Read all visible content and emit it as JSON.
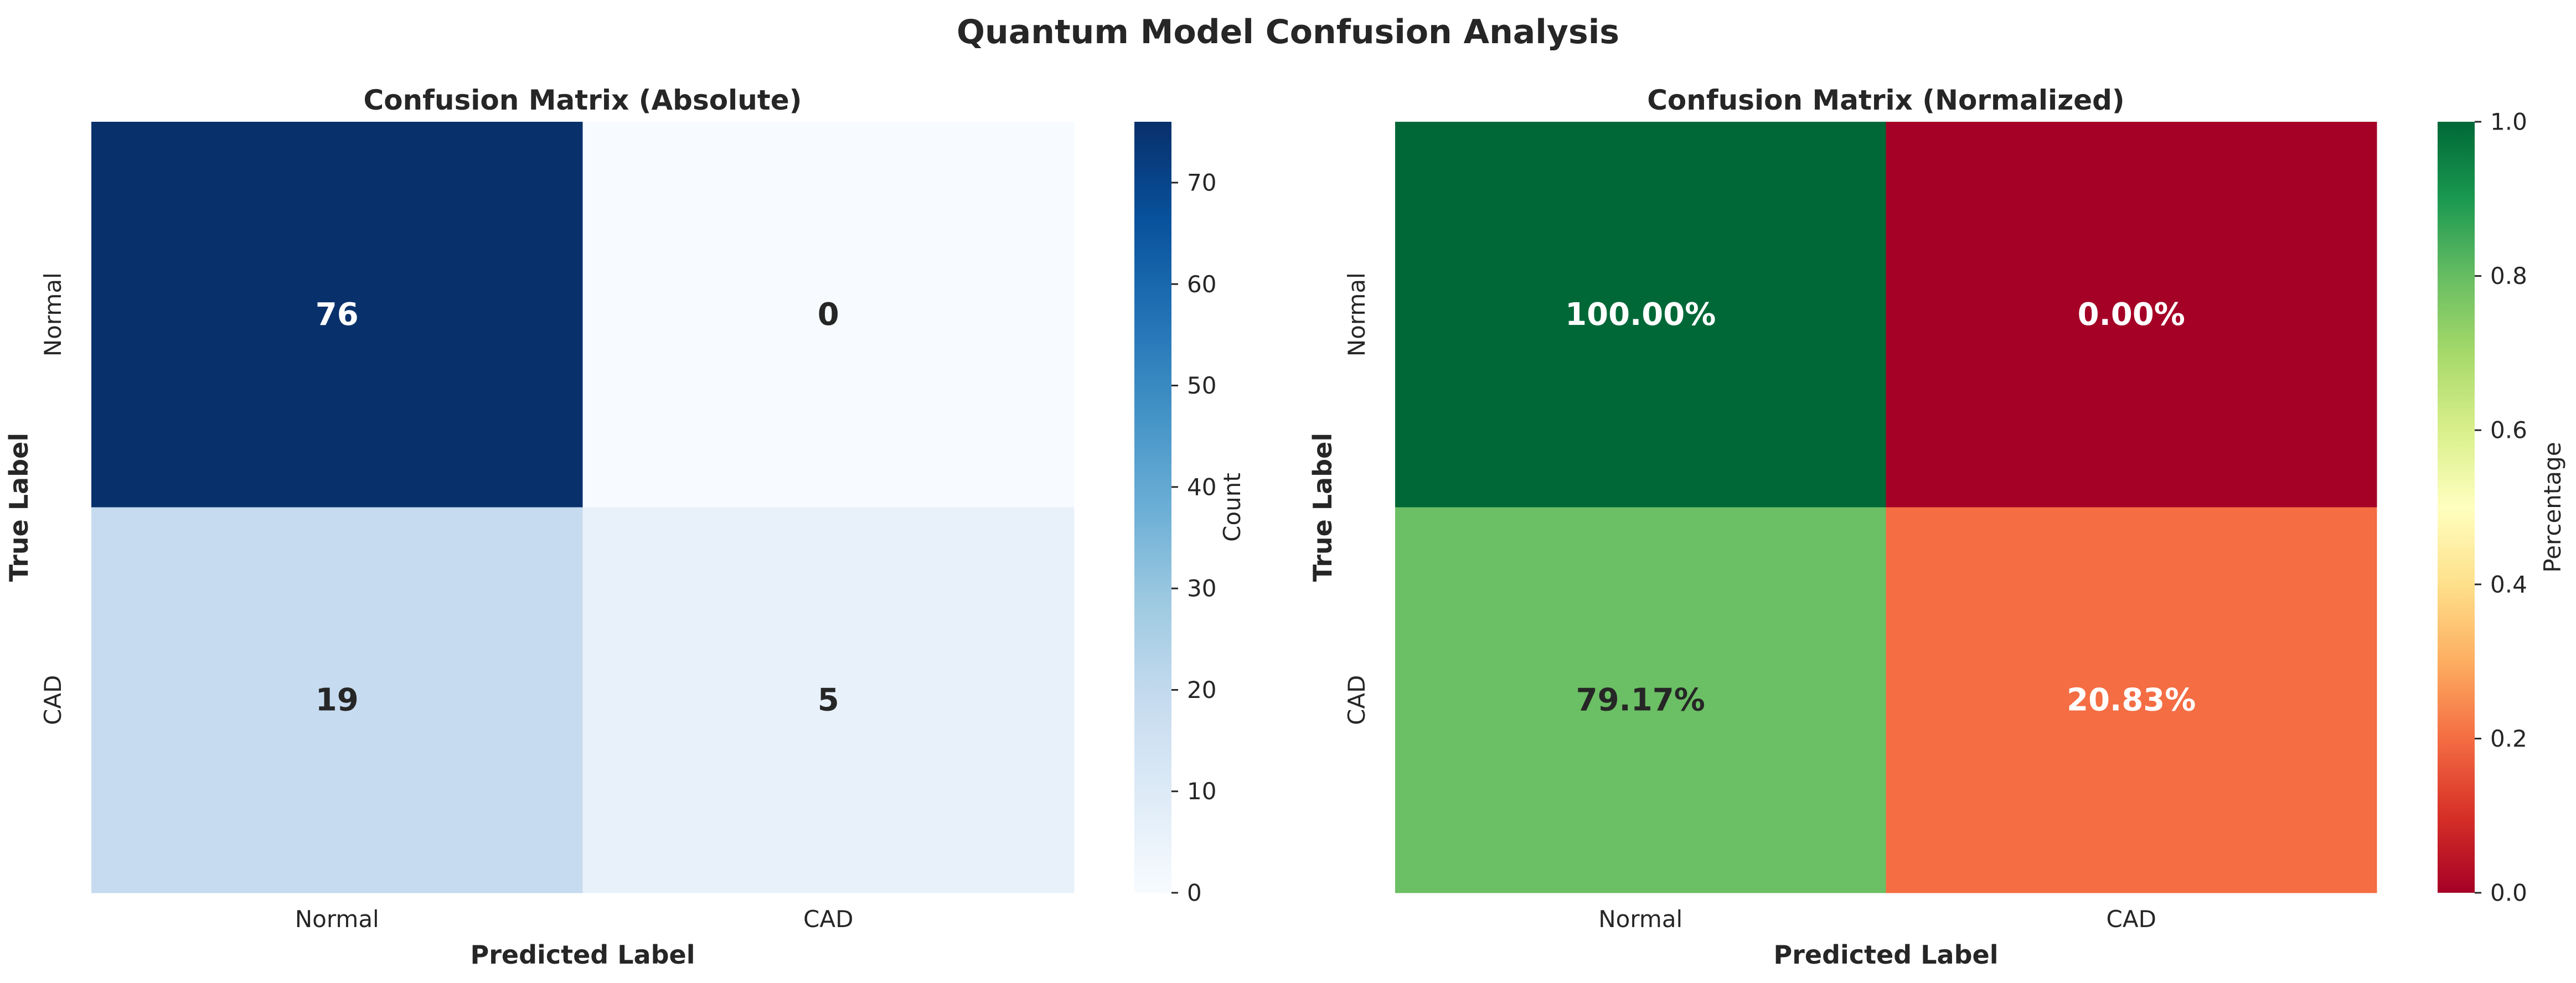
{
  "figure": {
    "title": "Quantum Model Confusion Analysis"
  },
  "chart_data": [
    {
      "type": "heatmap",
      "title": "Confusion Matrix (Absolute)",
      "xlabel": "Predicted Label",
      "ylabel": "True Label",
      "x_categories": [
        "Normal",
        "CAD"
      ],
      "y_categories": [
        "Normal",
        "CAD"
      ],
      "values": [
        [
          76,
          0
        ],
        [
          19,
          5
        ]
      ],
      "cell_labels": [
        [
          "76",
          "0"
        ],
        [
          "19",
          "5"
        ]
      ],
      "colormap": "Blues",
      "colorbar": {
        "label": "Count",
        "range": [
          0,
          76
        ],
        "ticks": [
          0,
          10,
          20,
          30,
          40,
          50,
          60,
          70
        ],
        "tick_labels": [
          "0",
          "10",
          "20",
          "30",
          "40",
          "50",
          "60",
          "70"
        ]
      },
      "cell_colors": [
        [
          "#08306b",
          "#f7fbff"
        ],
        [
          "#c6dbef",
          "#e8f1fa"
        ]
      ],
      "label_colors": [
        [
          "#ffffff",
          "#262626"
        ],
        [
          "#262626",
          "#262626"
        ]
      ],
      "colorbar_stops": [
        "#f7fbff",
        "#deebf7",
        "#c6dbef",
        "#9ecae1",
        "#6baed6",
        "#4292c6",
        "#2171b5",
        "#08519c",
        "#08306b"
      ]
    },
    {
      "type": "heatmap",
      "title": "Confusion Matrix (Normalized)",
      "xlabel": "Predicted Label",
      "ylabel": "True Label",
      "x_categories": [
        "Normal",
        "CAD"
      ],
      "y_categories": [
        "Normal",
        "CAD"
      ],
      "values": [
        [
          1.0,
          0.0
        ],
        [
          0.7917,
          0.2083
        ]
      ],
      "cell_labels": [
        [
          "100.00%",
          "0.00%"
        ],
        [
          "79.17%",
          "20.83%"
        ]
      ],
      "colormap": "RdYlGn",
      "colorbar": {
        "label": "Percentage",
        "range": [
          0,
          1
        ],
        "ticks": [
          0,
          0.2,
          0.4,
          0.6,
          0.8,
          1.0
        ],
        "tick_labels": [
          "0.0",
          "0.2",
          "0.4",
          "0.6",
          "0.8",
          "1.0"
        ]
      },
      "cell_colors": [
        [
          "#006837",
          "#a50026"
        ],
        [
          "#6bbf64",
          "#f46d43"
        ]
      ],
      "label_colors": [
        [
          "#ffffff",
          "#ffffff"
        ],
        [
          "#262626",
          "#ffffff"
        ]
      ],
      "colorbar_stops": [
        "#a50026",
        "#d73027",
        "#f46d43",
        "#fdae61",
        "#fee08b",
        "#ffffbf",
        "#d9ef8b",
        "#a6d96a",
        "#66bd63",
        "#1a9850",
        "#006837"
      ]
    }
  ]
}
